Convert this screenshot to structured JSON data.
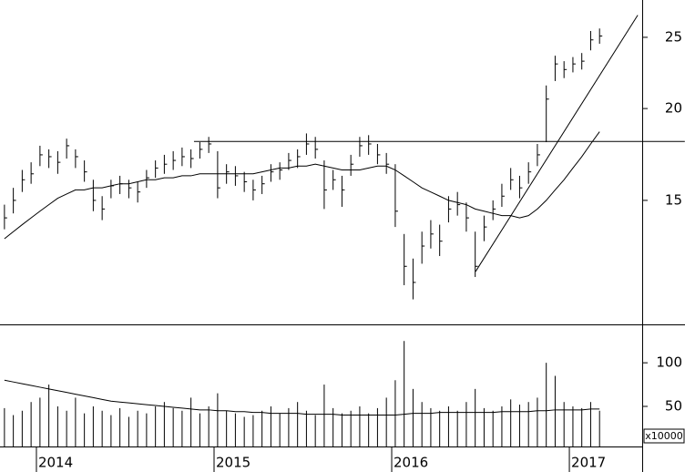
{
  "chart_data": [
    {
      "type": "ohlc",
      "scale": "log",
      "color": "#000000",
      "x": [
        2013.82,
        2013.87,
        2013.92,
        2013.97,
        2014.02,
        2014.07,
        2014.12,
        2014.17,
        2014.22,
        2014.27,
        2014.32,
        2014.37,
        2014.42,
        2014.47,
        2014.52,
        2014.57,
        2014.62,
        2014.67,
        2014.72,
        2014.77,
        2014.82,
        2014.87,
        2014.92,
        2014.97,
        2015.02,
        2015.07,
        2015.12,
        2015.17,
        2015.22,
        2015.27,
        2015.32,
        2015.37,
        2015.42,
        2015.47,
        2015.52,
        2015.57,
        2015.62,
        2015.67,
        2015.72,
        2015.77,
        2015.82,
        2015.87,
        2015.92,
        2015.97,
        2016.02,
        2016.07,
        2016.12,
        2016.17,
        2016.22,
        2016.27,
        2016.32,
        2016.37,
        2016.42,
        2016.47,
        2016.52,
        2016.57,
        2016.62,
        2016.67,
        2016.72,
        2016.77,
        2016.82,
        2016.87,
        2016.92,
        2016.97,
        2017.02,
        2017.07,
        2017.12,
        2017.17
      ],
      "high": [
        14.8,
        15.6,
        16.5,
        16.9,
        17.8,
        17.6,
        17.5,
        18.2,
        17.6,
        17.0,
        16.0,
        15.2,
        16.0,
        16.2,
        16.0,
        15.9,
        16.5,
        17.0,
        17.3,
        17.5,
        17.7,
        17.6,
        18.0,
        18.3,
        17.5,
        16.8,
        16.7,
        16.4,
        16.0,
        16.2,
        16.8,
        16.9,
        17.4,
        17.6,
        18.5,
        18.3,
        17.0,
        16.5,
        16.2,
        17.3,
        18.3,
        18.4,
        17.9,
        17.4,
        16.8,
        13.5,
        12.5,
        13.6,
        14.1,
        13.9,
        15.2,
        15.4,
        14.9,
        13.6,
        14.3,
        15.0,
        15.8,
        16.6,
        16.2,
        16.9,
        17.9,
        21.5,
        23.6,
        23.2,
        23.5,
        23.8,
        25.5,
        25.7
      ],
      "low": [
        13.7,
        14.4,
        15.4,
        15.8,
        16.7,
        16.6,
        16.3,
        17.1,
        16.6,
        15.9,
        14.5,
        14.1,
        15.1,
        15.3,
        15.1,
        14.9,
        15.6,
        16.1,
        16.3,
        16.5,
        16.7,
        16.6,
        17.1,
        17.4,
        15.1,
        15.8,
        15.7,
        15.4,
        15.0,
        15.3,
        15.9,
        16.0,
        16.5,
        16.6,
        17.3,
        17.1,
        14.6,
        15.5,
        14.7,
        16.2,
        17.2,
        17.3,
        16.8,
        16.3,
        13.8,
        11.5,
        11.0,
        12.3,
        12.9,
        12.6,
        14.0,
        14.3,
        13.6,
        11.8,
        13.2,
        14.1,
        14.7,
        15.5,
        15.1,
        15.8,
        16.7,
        18.0,
        21.8,
        22.0,
        22.4,
        22.6,
        24.0,
        24.5
      ],
      "close": [
        14.2,
        15.0,
        16.0,
        16.3,
        17.3,
        17.2,
        16.9,
        17.8,
        17.2,
        16.4,
        15.0,
        14.6,
        15.7,
        15.8,
        15.6,
        15.4,
        16.1,
        16.6,
        16.8,
        17.0,
        17.2,
        17.1,
        17.6,
        17.9,
        15.6,
        16.4,
        16.2,
        15.9,
        15.5,
        15.8,
        16.4,
        16.5,
        17.0,
        17.2,
        17.9,
        17.6,
        15.5,
        16.0,
        15.5,
        16.8,
        17.8,
        17.9,
        17.3,
        16.8,
        14.5,
        12.2,
        11.6,
        13.0,
        13.5,
        13.2,
        14.6,
        14.8,
        14.2,
        12.2,
        13.8,
        14.6,
        15.2,
        16.0,
        15.6,
        16.4,
        17.3,
        20.6,
        23.0,
        22.6,
        23.0,
        23.2,
        24.8,
        25.1
      ],
      "moving_average": [
        13.3,
        13.6,
        13.9,
        14.2,
        14.5,
        14.8,
        15.1,
        15.3,
        15.5,
        15.5,
        15.6,
        15.6,
        15.7,
        15.8,
        15.8,
        15.9,
        16.0,
        16.0,
        16.1,
        16.1,
        16.2,
        16.2,
        16.3,
        16.3,
        16.3,
        16.3,
        16.3,
        16.3,
        16.3,
        16.4,
        16.5,
        16.6,
        16.6,
        16.7,
        16.7,
        16.8,
        16.7,
        16.6,
        16.5,
        16.5,
        16.5,
        16.6,
        16.7,
        16.7,
        16.5,
        16.2,
        15.9,
        15.6,
        15.4,
        15.2,
        15.0,
        14.9,
        14.8,
        14.6,
        14.5,
        14.4,
        14.3,
        14.3,
        14.2,
        14.3,
        14.6,
        15.0,
        15.5,
        16.0,
        16.6,
        17.2,
        17.9,
        18.6
      ],
      "lines": [
        {
          "x": [
            2014.887,
            2017.65
          ],
          "y": [
            18.04,
            18.04
          ]
        },
        {
          "x": [
            2016.472,
            2017.385
          ],
          "y": [
            12.0,
            26.8
          ]
        }
      ],
      "xlim": [
        2013.795,
        2017.41
      ],
      "xticks": [
        2014,
        2015,
        2016,
        2017
      ],
      "ylim": [
        10.2,
        28.1
      ],
      "yticks": [
        15,
        20,
        25
      ]
    },
    {
      "type": "bar",
      "color": "#000000",
      "unit_label": "x10000",
      "values": [
        48,
        40,
        45,
        55,
        60,
        75,
        50,
        45,
        60,
        42,
        50,
        45,
        40,
        48,
        38,
        45,
        42,
        50,
        55,
        48,
        45,
        60,
        42,
        50,
        65,
        45,
        42,
        38,
        40,
        45,
        50,
        42,
        48,
        55,
        45,
        40,
        75,
        48,
        42,
        45,
        50,
        42,
        48,
        60,
        80,
        125,
        70,
        55,
        48,
        45,
        50,
        45,
        55,
        70,
        48,
        45,
        50,
        58,
        52,
        55,
        60,
        100,
        85,
        55,
        50,
        48,
        55,
        45
      ],
      "moving_average": [
        80,
        78,
        76,
        74,
        72,
        70,
        68,
        66,
        64,
        62,
        60,
        58,
        56,
        55,
        54,
        53,
        52,
        51,
        50,
        49,
        48,
        47,
        46,
        46,
        45,
        45,
        44,
        44,
        43,
        43,
        42,
        42,
        42,
        42,
        41,
        41,
        41,
        41,
        40,
        40,
        40,
        40,
        40,
        40,
        40,
        41,
        42,
        42,
        42,
        43,
        43,
        43,
        43,
        43,
        43,
        43,
        44,
        44,
        44,
        44,
        45,
        45,
        46,
        46,
        46,
        46,
        47,
        47
      ],
      "ylim": [
        4,
        143
      ],
      "yticks": [
        50,
        100
      ]
    }
  ]
}
